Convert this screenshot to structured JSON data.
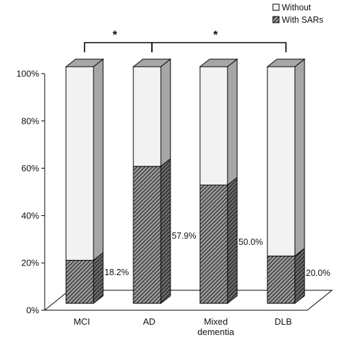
{
  "chart_data": {
    "type": "bar",
    "stacked": true,
    "three_d": true,
    "categories": [
      [
        "MCI"
      ],
      [
        "AD"
      ],
      [
        "Mixed",
        "dementia"
      ],
      [
        "DLB"
      ]
    ],
    "series": [
      {
        "name": "With SARs",
        "values": [
          18.2,
          57.9,
          50.0,
          20.0
        ],
        "pattern": "diagonal-hatch",
        "color": "#3a3a3a"
      },
      {
        "name": "Without",
        "values": [
          81.8,
          42.1,
          50.0,
          80.0
        ],
        "pattern": "solid",
        "color": "#f2f2f2"
      }
    ],
    "data_labels": [
      "18.2%",
      "57.9%",
      "50.0%",
      "20.0%"
    ],
    "yticks": [
      "0%",
      "20%",
      "40%",
      "60%",
      "80%",
      "100%"
    ],
    "ylim": [
      0,
      100
    ],
    "legend_position": "top-right",
    "significance": [
      {
        "from": 0,
        "to": 1,
        "label": "*"
      },
      {
        "from": 1,
        "to": 3,
        "label": "*"
      }
    ],
    "colors": {
      "side_face": "#a6a6a6",
      "top_face": "#a6a6a6",
      "outline": "#000000"
    }
  }
}
